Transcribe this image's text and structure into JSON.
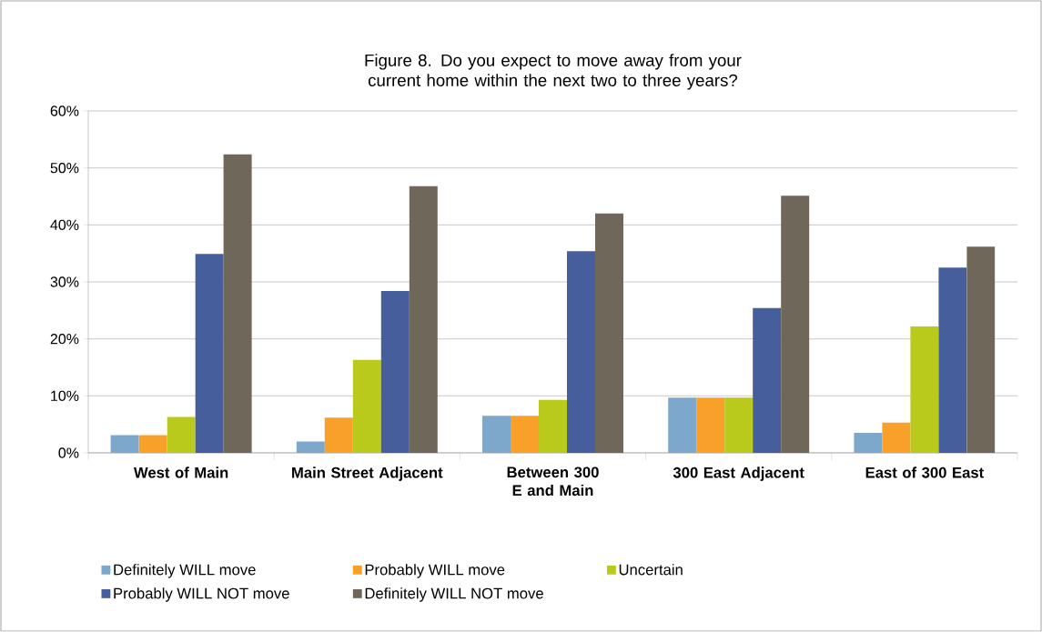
{
  "chart_data": {
    "type": "bar",
    "title": "Figure 8. Do you expect to move away from your current home within the next two to three years?",
    "categories": [
      "West of Main",
      "Main Street Adjacent",
      "Between 300 E and Main",
      "300 East Adjacent",
      "East of 300 East"
    ],
    "series": [
      {
        "name": "Definitely WILL move",
        "color": "#7ea8cb",
        "values": [
          3.1,
          2.0,
          6.5,
          9.7,
          3.5
        ]
      },
      {
        "name": "Probably WILL move",
        "color": "#f9a02a",
        "values": [
          3.1,
          6.2,
          6.5,
          9.7,
          5.3
        ]
      },
      {
        "name": "Uncertain",
        "color": "#b9ca1c",
        "values": [
          6.3,
          16.3,
          9.3,
          9.7,
          22.2
        ]
      },
      {
        "name": "Probably WILL NOT move",
        "color": "#465e9b",
        "values": [
          34.9,
          28.4,
          35.4,
          25.4,
          32.5
        ]
      },
      {
        "name": "Definitely WILL NOT move",
        "color": "#6f675a",
        "values": [
          52.4,
          46.8,
          42.0,
          45.1,
          36.2
        ]
      }
    ],
    "ylim": [
      0,
      60
    ],
    "yticks": [
      {
        "value": 0,
        "label": "0%"
      },
      {
        "value": 10,
        "label": "10%"
      },
      {
        "value": 20,
        "label": "20%"
      },
      {
        "value": 30,
        "label": "30%"
      },
      {
        "value": 40,
        "label": "40%"
      },
      {
        "value": 50,
        "label": "50%"
      },
      {
        "value": 60,
        "label": "60%"
      }
    ],
    "grid": "y",
    "legend": "bottom"
  }
}
